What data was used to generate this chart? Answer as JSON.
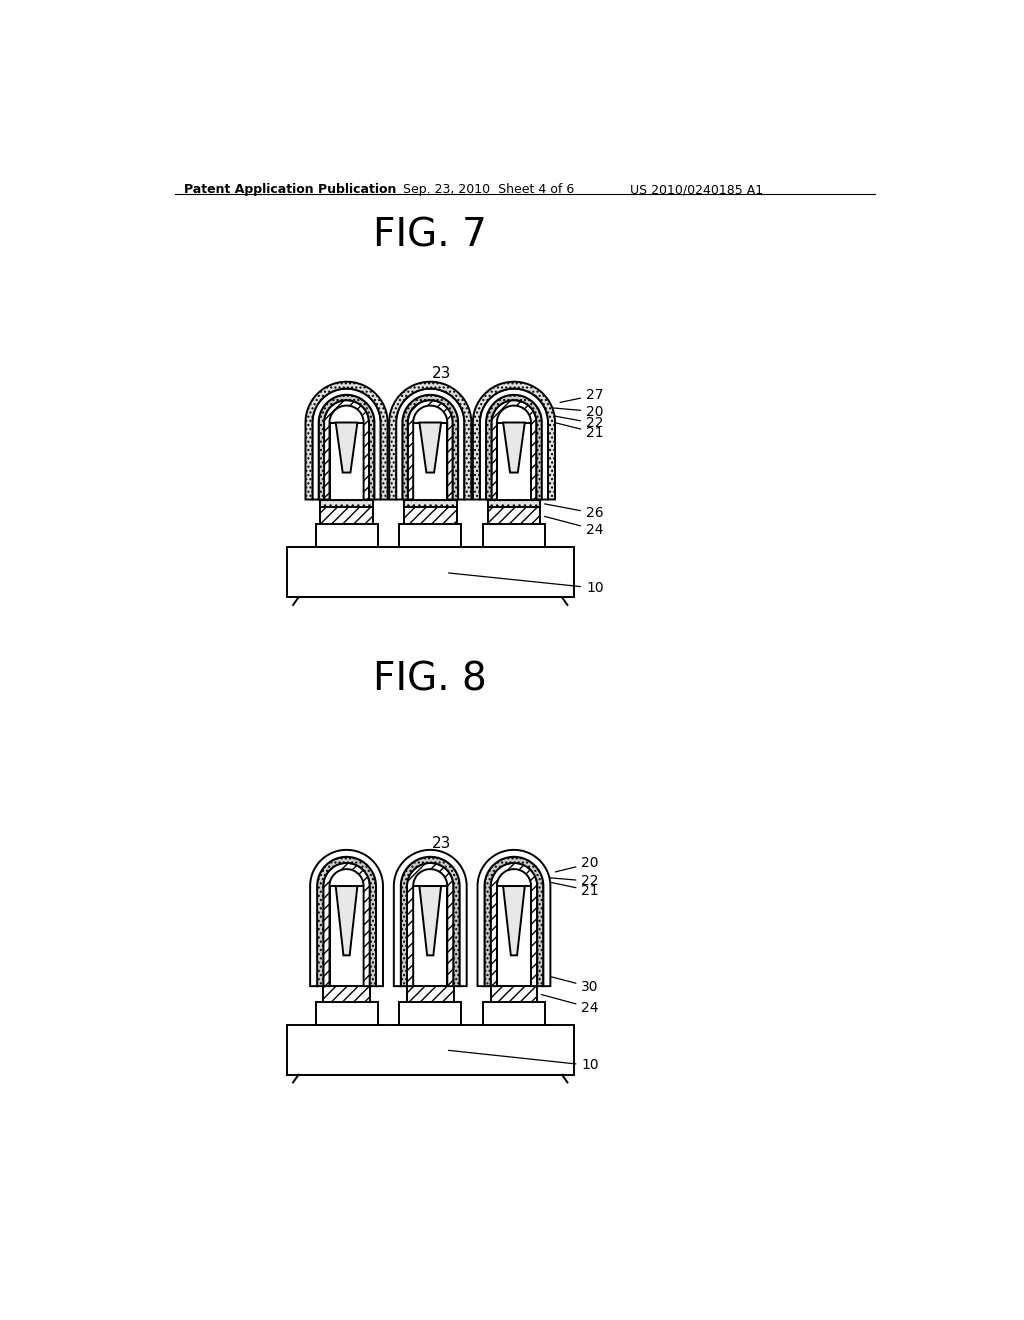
{
  "header_left": "Patent Application Publication",
  "header_mid": "Sep. 23, 2010  Sheet 4 of 6",
  "header_right": "US 2010/0240185 A1",
  "fig7_title": "FIG. 7",
  "fig8_title": "FIG. 8",
  "bg_color": "#ffffff"
}
